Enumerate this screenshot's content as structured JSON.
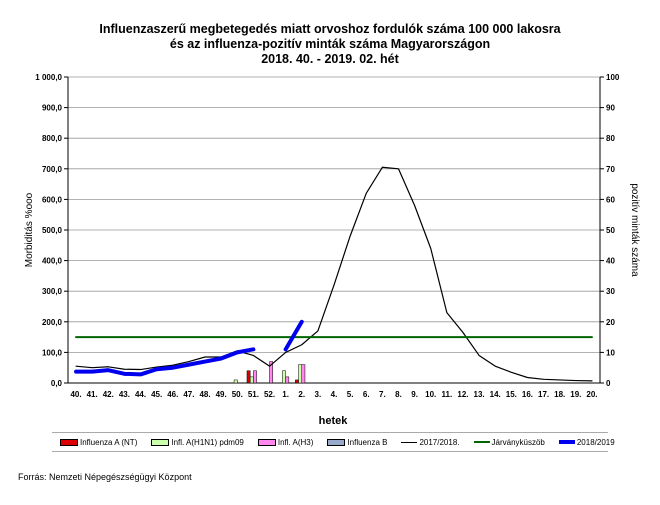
{
  "title": [
    "Influenzaszerű megbetegedés miatt orvoshoz fordulók száma 100 000 lakosra",
    "és az influenza-pozitív minták száma Magyarországon",
    "2018. 40. - 2019. 02. hét"
  ],
  "source": "Forrás: Nemzeti Népegészségügyi Központ",
  "chart_data": {
    "type": "line+bar",
    "xlabel": "hetek",
    "ylabel": "Morbiditás %ooo",
    "y2label": "pozitív minták száma",
    "ylim": [
      0,
      1000
    ],
    "y2lim": [
      0,
      100
    ],
    "yticks": [
      "0,0",
      "100,0",
      "200,0",
      "300,0",
      "400,0",
      "500,0",
      "600,0",
      "700,0",
      "800,0",
      "900,0",
      "1 000,0"
    ],
    "y2ticks": [
      "0",
      "10",
      "20",
      "30",
      "40",
      "50",
      "60",
      "70",
      "80",
      "90",
      "100"
    ],
    "grid": true,
    "legend": "bottom",
    "categories": [
      "40.",
      "41.",
      "42.",
      "43.",
      "44.",
      "45.",
      "46.",
      "47.",
      "48.",
      "49.",
      "50.",
      "51.",
      "52.",
      "1.",
      "2.",
      "3.",
      "4.",
      "5.",
      "6.",
      "7.",
      "8.",
      "9.",
      "10.",
      "11.",
      "12.",
      "13.",
      "14.",
      "15.",
      "16.",
      "17.",
      "18.",
      "19.",
      "20."
    ],
    "lines": [
      {
        "name": "2017/2018.",
        "color": "#000000",
        "values": [
          55,
          50,
          53,
          45,
          44,
          52,
          58,
          70,
          85,
          85,
          105,
          90,
          55,
          100,
          125,
          170,
          320,
          480,
          620,
          705,
          700,
          580,
          440,
          230,
          165,
          90,
          55,
          35,
          18,
          12,
          10,
          8,
          7
        ]
      },
      {
        "name": "Járványküszöb",
        "color": "#006600",
        "values": [
          150,
          150,
          150,
          150,
          150,
          150,
          150,
          150,
          150,
          150,
          150,
          150,
          150,
          150,
          150,
          150,
          150,
          150,
          150,
          150,
          150,
          150,
          150,
          150,
          150,
          150,
          150,
          150,
          150,
          150,
          150,
          150,
          150
        ]
      },
      {
        "name": "2018/2019",
        "color": "#0000ee",
        "values": [
          37,
          37,
          42,
          30,
          28,
          45,
          50,
          60,
          70,
          80,
          100,
          110,
          null,
          110,
          200
        ]
      }
    ],
    "bars": [
      {
        "name": "Influenza A (NT)",
        "color": "#dd0000",
        "values": [
          0,
          0,
          0,
          0,
          0,
          0,
          0,
          0,
          0,
          0,
          0,
          4,
          0,
          0,
          1
        ]
      },
      {
        "name": "Infl. A(H1N1) pdm09",
        "color": "#ccffaa",
        "values": [
          0,
          0,
          0,
          0,
          0,
          0,
          0,
          0,
          0,
          0,
          1,
          2,
          0,
          4,
          6
        ]
      },
      {
        "name": "Infl. A(H3)",
        "color": "#ff88ee",
        "values": [
          0,
          0,
          0,
          0,
          0,
          0,
          0,
          0,
          0,
          0,
          0,
          4,
          7,
          2,
          6
        ]
      },
      {
        "name": "Influenza B",
        "color": "#99aacc",
        "values": [
          0,
          0,
          0,
          0,
          0,
          0,
          0,
          0,
          0,
          0,
          0,
          0,
          0,
          0,
          0
        ]
      }
    ]
  }
}
